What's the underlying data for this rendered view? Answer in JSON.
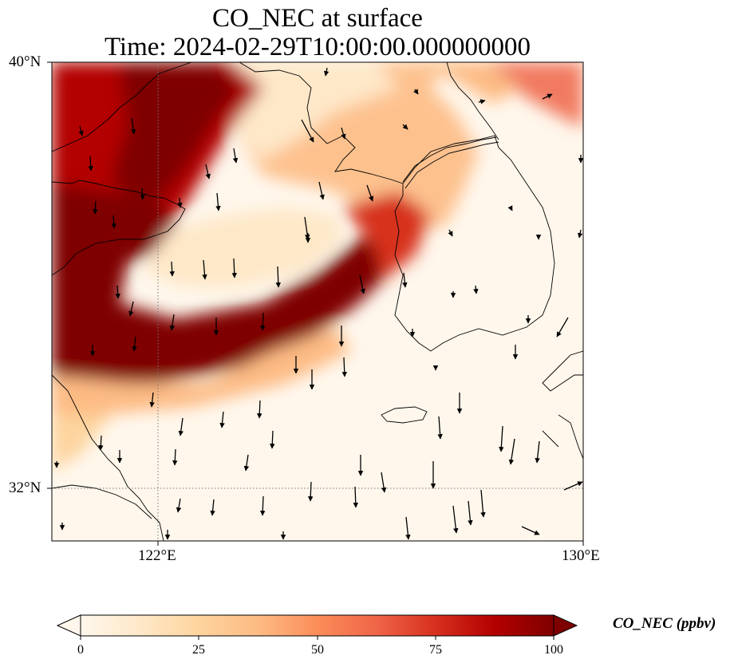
{
  "title": {
    "line1": "CO_NEC at surface",
    "line2": "Time: 2024-02-29T10:00:00.000000000"
  },
  "map": {
    "lon_range": [
      120,
      130
    ],
    "lat_range": [
      31,
      40
    ],
    "lat_ticks": [
      {
        "value": 40,
        "label": "40°N"
      },
      {
        "value": 32,
        "label": "32°N"
      }
    ],
    "lon_ticks": [
      {
        "value": 122,
        "label": "122°E"
      },
      {
        "value": 130,
        "label": "130°E"
      }
    ],
    "gridlines": {
      "lon": 122,
      "lat": 32,
      "style": "dotted"
    },
    "field": "CO_NEC",
    "field_description": "Surface concentration field shading with wind vectors (arrows)",
    "vector_field": "wind arrows, predominantly pointing south (north to south flow)"
  },
  "colorbar": {
    "label": "CO_NEC (ppbv)",
    "min": 0,
    "max": 100,
    "ticks": [
      "0",
      "25",
      "50",
      "75",
      "100"
    ],
    "extend": "both",
    "colormap": "OrRd",
    "stops": [
      "#fff7ec",
      "#fee8c8",
      "#fdd49e",
      "#fdbb84",
      "#fc8d59",
      "#ef6548",
      "#d7301f",
      "#b30000",
      "#7f0000"
    ]
  },
  "chart_data": {
    "type": "heatmap",
    "title": "CO_NEC at surface",
    "subtitle": "Time: 2024-02-29T10:00:00.000000000",
    "xlabel": "",
    "ylabel": "",
    "xlim": [
      120,
      130
    ],
    "ylim": [
      31,
      40
    ],
    "value_range": [
      0,
      100
    ],
    "units": "ppbv"
  }
}
